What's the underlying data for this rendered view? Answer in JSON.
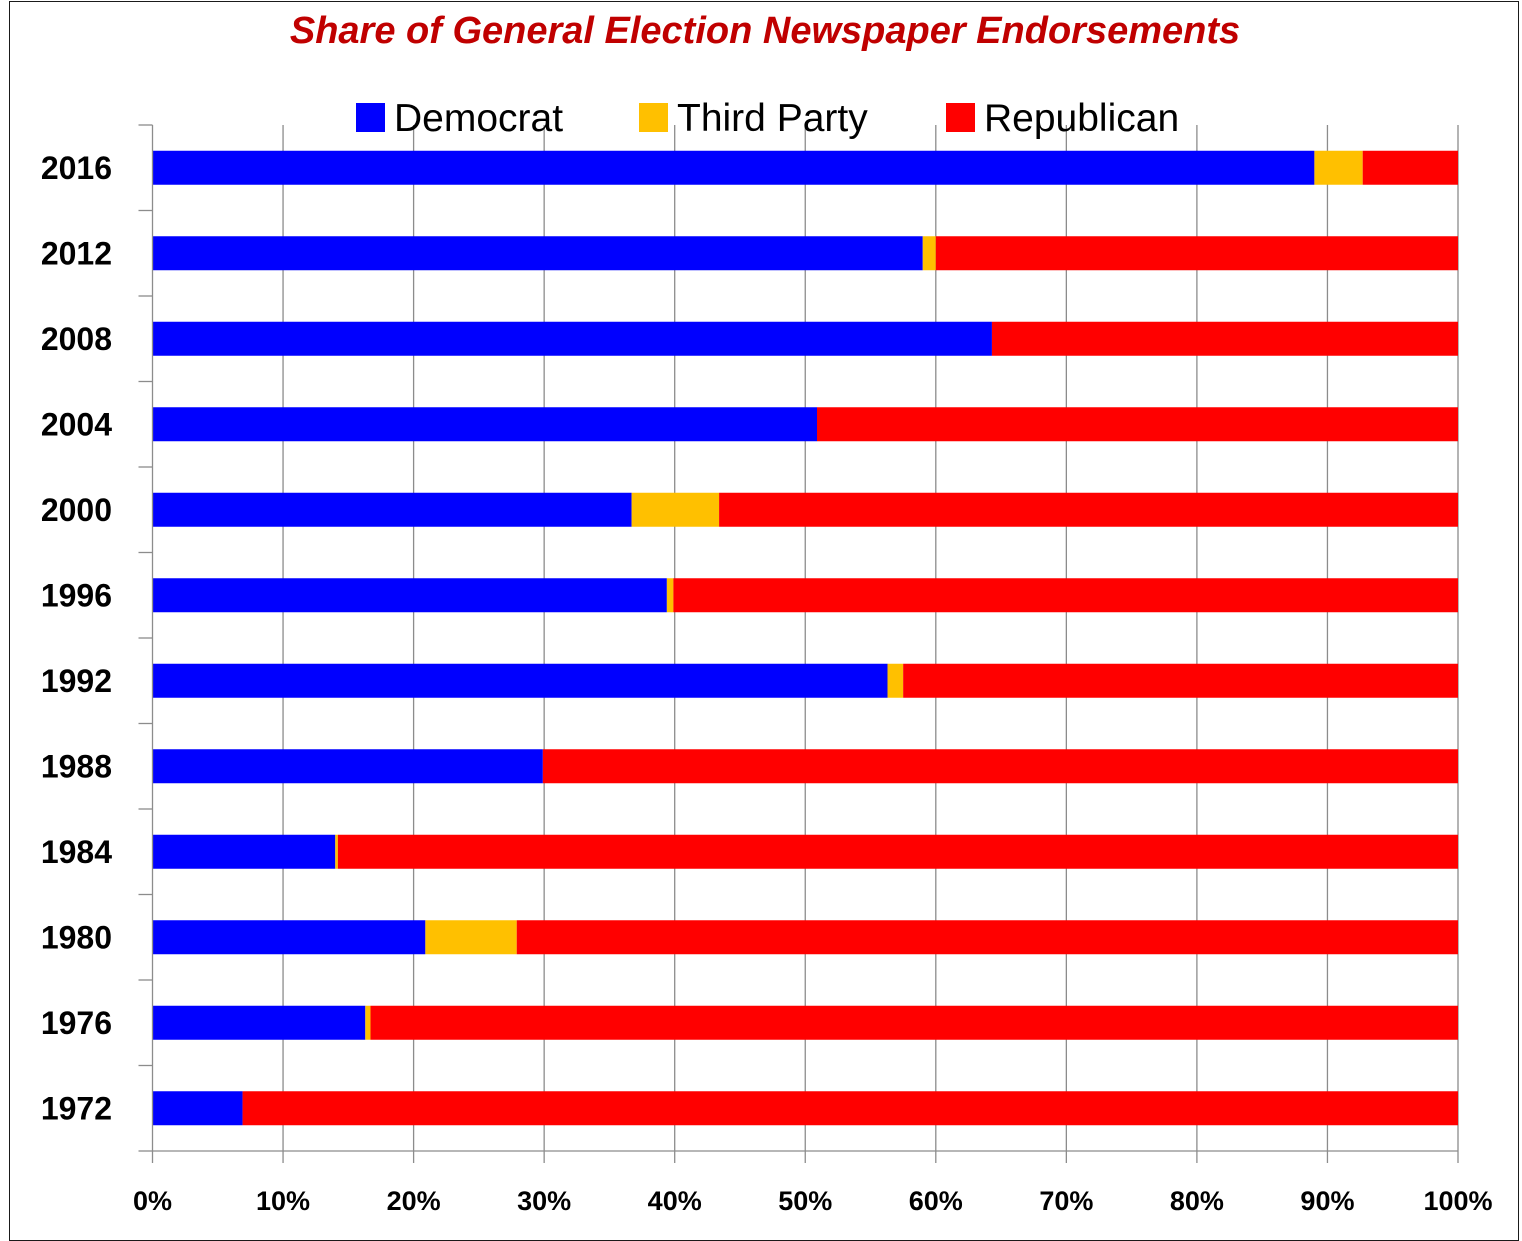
{
  "chart_data": {
    "type": "bar",
    "orientation": "horizontal",
    "stacked": true,
    "title": "Share of General Election Newspaper Endorsements",
    "categories": [
      "2016",
      "2012",
      "2008",
      "2004",
      "2000",
      "1996",
      "1992",
      "1988",
      "1984",
      "1980",
      "1976",
      "1972"
    ],
    "series": [
      {
        "name": "Democrat",
        "color": "#0000ff",
        "values": [
          89.0,
          59.0,
          64.3,
          50.9,
          36.7,
          39.4,
          56.3,
          29.9,
          14.0,
          20.9,
          16.3,
          6.9
        ]
      },
      {
        "name": "Third Party",
        "color": "#ffc000",
        "values": [
          3.7,
          1.0,
          0.0,
          0.0,
          6.7,
          0.5,
          1.2,
          0.0,
          0.2,
          7.0,
          0.4,
          0.0
        ]
      },
      {
        "name": "Republican",
        "color": "#ff0000",
        "values": [
          7.3,
          40.0,
          35.7,
          49.1,
          56.6,
          60.1,
          42.5,
          70.1,
          85.8,
          72.1,
          83.3,
          93.1
        ]
      }
    ],
    "x_ticks": [
      "0%",
      "10%",
      "20%",
      "30%",
      "40%",
      "50%",
      "60%",
      "70%",
      "80%",
      "90%",
      "100%"
    ],
    "xlim": [
      0,
      100
    ],
    "grid": "vertical",
    "legend": "top"
  }
}
